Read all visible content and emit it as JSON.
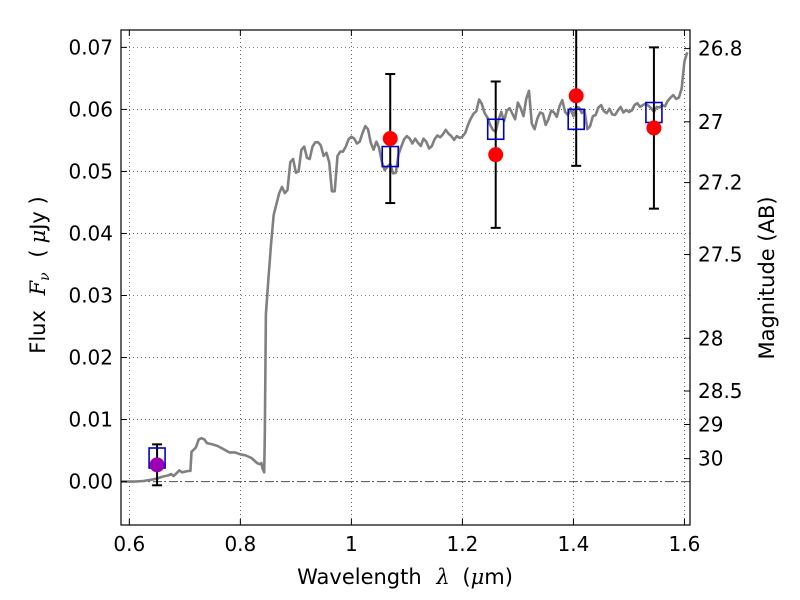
{
  "chart_data": {
    "type": "scatter",
    "xlabel": "Wavelength",
    "xlabel_math": "λ",
    "xlabel_unit_prefix": "(",
    "xlabel_unit_mu": "μ",
    "xlabel_unit_suffix": "m)",
    "ylabel": "Flux",
    "ylabel_math": "F",
    "ylabel_math_sub": "ν",
    "ylabel_unit_prefix": "(",
    "ylabel_unit_mu": "μ",
    "ylabel_unit_suffix": "Jy )",
    "y2label": "Magnitude (AB)",
    "xlim": [
      0.585,
      1.61
    ],
    "ylim": [
      -0.007,
      0.0728
    ],
    "grid": true,
    "x_ticks": [
      0.6,
      0.8,
      1.0,
      1.2,
      1.4,
      1.6
    ],
    "x_tick_labels": [
      "0.6",
      "0.8",
      "1",
      "1.2",
      "1.4",
      "1.6"
    ],
    "y_ticks": [
      0.0,
      0.01,
      0.02,
      0.03,
      0.04,
      0.05,
      0.06,
      0.07
    ],
    "y_tick_labels": [
      "0.00",
      "0.01",
      "0.02",
      "0.03",
      "0.04",
      "0.05",
      "0.06",
      "0.07"
    ],
    "y2_ticks": [
      {
        "label": "26.8",
        "flux": 0.0698
      },
      {
        "label": "27",
        "flux": 0.058
      },
      {
        "label": "27.2",
        "flux": 0.0482
      },
      {
        "label": "27.5",
        "flux": 0.0366
      },
      {
        "label": "28",
        "flux": 0.0231
      },
      {
        "label": "28.5",
        "flux": 0.0146
      },
      {
        "label": "29",
        "flux": 0.0092
      },
      {
        "label": "30",
        "flux": 0.0037
      }
    ],
    "zero_line": 0.0,
    "colors": {
      "model": "#808080",
      "observed": "#ff0000",
      "model_band": "#0000cc",
      "faint_point": "#9b00b4",
      "error_bar": "#000000",
      "zero_line": "#555555"
    },
    "series": [
      {
        "role": "model_sed",
        "points": [
          [
            0.585,
            0.0
          ],
          [
            0.61,
            0.0
          ],
          [
            0.625,
            0.0001
          ],
          [
            0.64,
            0.0003
          ],
          [
            0.65,
            0.0005
          ],
          [
            0.66,
            0.0008
          ],
          [
            0.67,
            0.001
          ],
          [
            0.675,
            0.0012
          ],
          [
            0.68,
            0.0009
          ],
          [
            0.69,
            0.0018
          ],
          [
            0.695,
            0.0015
          ],
          [
            0.7,
            0.0016
          ],
          [
            0.705,
            0.0017
          ],
          [
            0.71,
            0.0017
          ],
          [
            0.712,
            0.0048
          ],
          [
            0.72,
            0.0055
          ],
          [
            0.725,
            0.0068
          ],
          [
            0.73,
            0.007
          ],
          [
            0.735,
            0.0068
          ],
          [
            0.74,
            0.0062
          ],
          [
            0.75,
            0.006
          ],
          [
            0.76,
            0.0057
          ],
          [
            0.77,
            0.0052
          ],
          [
            0.78,
            0.0047
          ],
          [
            0.79,
            0.0047
          ],
          [
            0.8,
            0.0044
          ],
          [
            0.81,
            0.0042
          ],
          [
            0.82,
            0.0038
          ],
          [
            0.83,
            0.003
          ],
          [
            0.835,
            0.0028
          ],
          [
            0.838,
            0.003
          ],
          [
            0.84,
            0.0021
          ],
          [
            0.843,
            0.0015
          ],
          [
            0.844,
            0.0074
          ],
          [
            0.846,
            0.027
          ],
          [
            0.85,
            0.032
          ],
          [
            0.855,
            0.038
          ],
          [
            0.86,
            0.043
          ],
          [
            0.87,
            0.0465
          ],
          [
            0.875,
            0.0475
          ],
          [
            0.88,
            0.0465
          ],
          [
            0.885,
            0.047
          ],
          [
            0.89,
            0.0515
          ],
          [
            0.895,
            0.052
          ],
          [
            0.9,
            0.0498
          ],
          [
            0.905,
            0.05
          ],
          [
            0.91,
            0.0535
          ],
          [
            0.915,
            0.054
          ],
          [
            0.92,
            0.0522
          ],
          [
            0.925,
            0.052
          ],
          [
            0.93,
            0.054
          ],
          [
            0.935,
            0.0547
          ],
          [
            0.94,
            0.0547
          ],
          [
            0.945,
            0.0542
          ],
          [
            0.95,
            0.0525
          ],
          [
            0.955,
            0.053
          ],
          [
            0.96,
            0.0515
          ],
          [
            0.965,
            0.0468
          ],
          [
            0.97,
            0.0468
          ],
          [
            0.975,
            0.0525
          ],
          [
            0.98,
            0.0532
          ],
          [
            0.985,
            0.0532
          ],
          [
            0.99,
            0.054
          ],
          [
            0.995,
            0.0552
          ],
          [
            1.0,
            0.0556
          ],
          [
            1.005,
            0.0553
          ],
          [
            1.01,
            0.0545
          ],
          [
            1.015,
            0.0548
          ],
          [
            1.02,
            0.0562
          ],
          [
            1.025,
            0.0573
          ],
          [
            1.03,
            0.0568
          ],
          [
            1.035,
            0.0546
          ],
          [
            1.04,
            0.0535
          ],
          [
            1.045,
            0.0548
          ],
          [
            1.05,
            0.0538
          ],
          [
            1.055,
            0.0515
          ],
          [
            1.06,
            0.0502
          ],
          [
            1.065,
            0.0508
          ],
          [
            1.07,
            0.0512
          ],
          [
            1.075,
            0.0497
          ],
          [
            1.08,
            0.0498
          ],
          [
            1.085,
            0.0528
          ],
          [
            1.09,
            0.054
          ],
          [
            1.095,
            0.0552
          ],
          [
            1.1,
            0.0557
          ],
          [
            1.105,
            0.0553
          ],
          [
            1.11,
            0.0545
          ],
          [
            1.115,
            0.0553
          ],
          [
            1.12,
            0.0546
          ],
          [
            1.125,
            0.0541
          ],
          [
            1.13,
            0.0553
          ],
          [
            1.135,
            0.0548
          ],
          [
            1.14,
            0.0537
          ],
          [
            1.145,
            0.0541
          ],
          [
            1.15,
            0.0552
          ],
          [
            1.155,
            0.0558
          ],
          [
            1.16,
            0.0555
          ],
          [
            1.165,
            0.056
          ],
          [
            1.17,
            0.0567
          ],
          [
            1.175,
            0.0561
          ],
          [
            1.18,
            0.0557
          ],
          [
            1.185,
            0.0551
          ],
          [
            1.19,
            0.0557
          ],
          [
            1.195,
            0.0554
          ],
          [
            1.2,
            0.0556
          ],
          [
            1.205,
            0.0562
          ],
          [
            1.21,
            0.0575
          ],
          [
            1.215,
            0.0585
          ],
          [
            1.22,
            0.0593
          ],
          [
            1.225,
            0.0597
          ],
          [
            1.23,
            0.0616
          ],
          [
            1.235,
            0.0609
          ],
          [
            1.24,
            0.0594
          ],
          [
            1.245,
            0.0587
          ],
          [
            1.25,
            0.0575
          ],
          [
            1.255,
            0.0567
          ],
          [
            1.26,
            0.0564
          ],
          [
            1.265,
            0.0583
          ],
          [
            1.27,
            0.0596
          ],
          [
            1.275,
            0.0581
          ],
          [
            1.28,
            0.0598
          ],
          [
            1.285,
            0.0602
          ],
          [
            1.29,
            0.0593
          ],
          [
            1.295,
            0.0584
          ],
          [
            1.3,
            0.0611
          ],
          [
            1.305,
            0.0602
          ],
          [
            1.31,
            0.0589
          ],
          [
            1.315,
            0.0617
          ],
          [
            1.32,
            0.063
          ],
          [
            1.325,
            0.0577
          ],
          [
            1.33,
            0.0568
          ],
          [
            1.335,
            0.0585
          ],
          [
            1.34,
            0.0595
          ],
          [
            1.345,
            0.0593
          ],
          [
            1.35,
            0.0575
          ],
          [
            1.355,
            0.0584
          ],
          [
            1.36,
            0.0598
          ],
          [
            1.365,
            0.0595
          ],
          [
            1.37,
            0.0588
          ],
          [
            1.375,
            0.0605
          ],
          [
            1.38,
            0.0615
          ],
          [
            1.385,
            0.0596
          ],
          [
            1.39,
            0.0591
          ],
          [
            1.395,
            0.0602
          ],
          [
            1.4,
            0.0589
          ],
          [
            1.405,
            0.0604
          ],
          [
            1.41,
            0.0603
          ],
          [
            1.415,
            0.0594
          ],
          [
            1.42,
            0.0598
          ],
          [
            1.425,
            0.0568
          ],
          [
            1.43,
            0.0573
          ],
          [
            1.435,
            0.0589
          ],
          [
            1.44,
            0.0591
          ],
          [
            1.445,
            0.0603
          ],
          [
            1.45,
            0.0607
          ],
          [
            1.455,
            0.0597
          ],
          [
            1.46,
            0.0594
          ],
          [
            1.465,
            0.0601
          ],
          [
            1.47,
            0.0592
          ],
          [
            1.475,
            0.0591
          ],
          [
            1.48,
            0.0598
          ],
          [
            1.485,
            0.0604
          ],
          [
            1.49,
            0.0595
          ],
          [
            1.495,
            0.0599
          ],
          [
            1.5,
            0.0596
          ],
          [
            1.505,
            0.0598
          ],
          [
            1.51,
            0.0607
          ],
          [
            1.515,
            0.061
          ],
          [
            1.52,
            0.0604
          ],
          [
            1.525,
            0.0607
          ],
          [
            1.53,
            0.0609
          ],
          [
            1.535,
            0.0606
          ],
          [
            1.54,
            0.0602
          ],
          [
            1.545,
            0.0596
          ],
          [
            1.55,
            0.0604
          ],
          [
            1.555,
            0.0603
          ],
          [
            1.56,
            0.0607
          ],
          [
            1.565,
            0.0605
          ],
          [
            1.57,
            0.0614
          ],
          [
            1.575,
            0.0619
          ],
          [
            1.58,
            0.0623
          ],
          [
            1.585,
            0.0617
          ],
          [
            1.59,
            0.0619
          ],
          [
            1.595,
            0.0634
          ],
          [
            1.6,
            0.0677
          ],
          [
            1.605,
            0.0692
          ]
        ]
      },
      {
        "role": "model_band_flux",
        "points": [
          [
            0.65,
            0.0038
          ],
          [
            1.07,
            0.0524
          ],
          [
            1.26,
            0.0568
          ],
          [
            1.405,
            0.0584
          ],
          [
            1.545,
            0.0595
          ]
        ]
      },
      {
        "role": "observed_flux",
        "points": [
          {
            "x": 0.65,
            "y": 0.0027,
            "yerr": 0.0033,
            "color_key": "faint_point"
          },
          {
            "x": 1.07,
            "y": 0.0553,
            "yerr": 0.0104,
            "color_key": "observed"
          },
          {
            "x": 1.26,
            "y": 0.0527,
            "yerr": 0.0118,
            "color_key": "observed"
          },
          {
            "x": 1.405,
            "y": 0.0622,
            "yerr": 0.0113,
            "color_key": "observed"
          },
          {
            "x": 1.545,
            "y": 0.057,
            "yerr": 0.013,
            "color_key": "observed"
          }
        ]
      }
    ]
  }
}
